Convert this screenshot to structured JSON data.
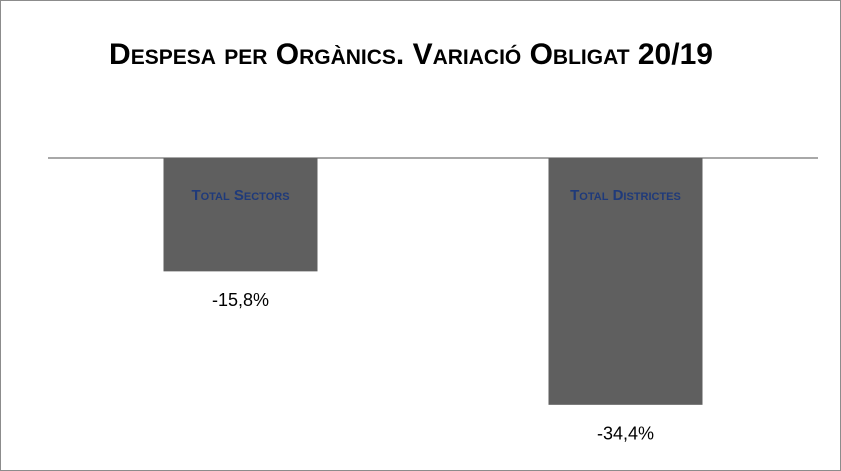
{
  "chart_data": {
    "type": "bar",
    "title": "Despesa per Orgànics. Variació Obligat 20/19",
    "categories": [
      "Total Sectors",
      "Total Districtes"
    ],
    "values": [
      -15.8,
      -34.4
    ],
    "value_labels": [
      "-15,8%",
      "-34,4%"
    ],
    "color": "#5f5f5f",
    "category_color": "#1f3a7a",
    "ylim": [
      -40,
      0
    ]
  }
}
